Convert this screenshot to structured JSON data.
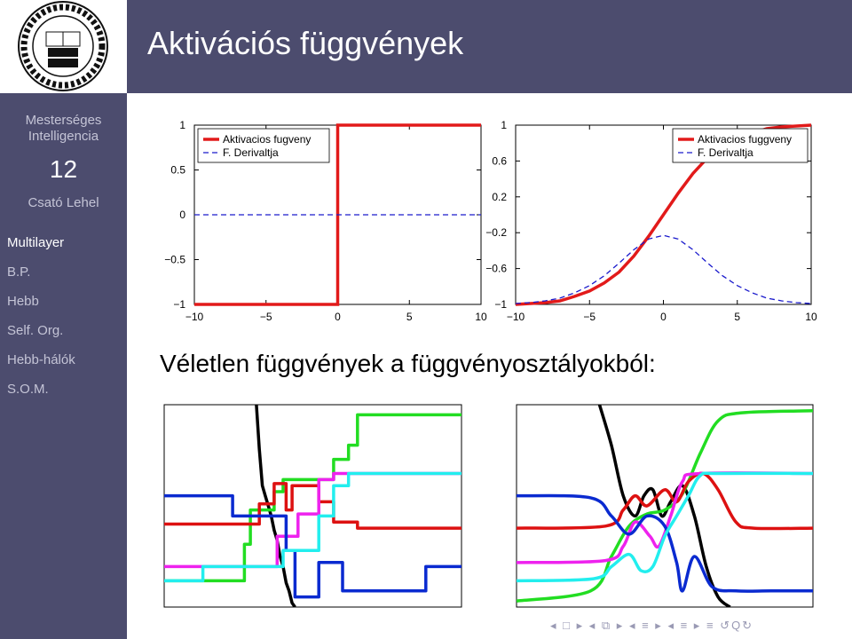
{
  "slide": {
    "title": "Aktivációs függvények",
    "subheading": "Véletlen függvények a függvényosztályokból:"
  },
  "logo": {
    "ring_text": "UNIVERSITAS NAPOCENSIS",
    "center_text": "TRADITIO NOSTRA UNACUM EUROPAE VIRTUTIBUS SPLENDIT",
    "year": "1581",
    "bottom_text": "BABEŞ-BOLYAI ROMANA"
  },
  "sidebar": {
    "course": "Mesterséges Intelligencia",
    "course_line1": "Mesterséges",
    "course_line2": "Intelligencia",
    "lecture_number": "12",
    "author": "Csató Lehel",
    "nav_items": [
      {
        "label": "Multilayer",
        "active": true
      },
      {
        "label": "B.P.",
        "active": false
      },
      {
        "label": "Hebb",
        "active": false
      },
      {
        "label": "Self. Org.",
        "active": false
      },
      {
        "label": "Hebb-hálók",
        "active": false
      },
      {
        "label": "S.O.M.",
        "active": false
      }
    ]
  },
  "colors": {
    "sidebar_bg": "#4c4c6e",
    "activation": "#e21a1a",
    "derivative": "#1a1acc",
    "green": "#22dd22",
    "magenta": "#ee22ee",
    "cyan": "#22eeee",
    "blue": "#0a2ad0",
    "red": "#dd1111",
    "black": "#000000"
  },
  "chart_data": [
    {
      "type": "line",
      "title": "",
      "xlim": [
        -10,
        10
      ],
      "ylim": [
        -1,
        1
      ],
      "xticks": [
        "−10",
        "−5",
        "0",
        "5",
        "10"
      ],
      "yticks": [
        "−1",
        "−0.5",
        "0",
        "0.5",
        "1"
      ],
      "legend": "top-left",
      "series": [
        {
          "name": "Aktivacios fugveny",
          "style": "solid",
          "color": "#e21a1a",
          "x": [
            -10,
            0,
            0,
            10
          ],
          "y": [
            -1,
            -1,
            1,
            1
          ]
        },
        {
          "name": "F. Derivaltja",
          "style": "dashed",
          "color": "#1a1acc",
          "x": [
            -10,
            10
          ],
          "y": [
            0,
            0
          ]
        }
      ]
    },
    {
      "type": "line",
      "title": "",
      "xlim": [
        -10,
        10
      ],
      "ylim": [
        -1,
        1
      ],
      "xticks": [
        "−10",
        "−5",
        "0",
        "5",
        "10"
      ],
      "yticks": [
        "−1",
        "−0.6",
        "−0.2",
        "0.2",
        "0.6",
        "1"
      ],
      "legend": "top-right",
      "series": [
        {
          "name": "Aktivacios fuggveny",
          "style": "solid",
          "color": "#e21a1a",
          "x": [
            -10,
            -9,
            -8,
            -7,
            -6,
            -5,
            -4,
            -3,
            -2,
            -1,
            0,
            1,
            2,
            3,
            4,
            5,
            6,
            7,
            8,
            9,
            10
          ],
          "y": [
            -1.0,
            -0.99,
            -0.98,
            -0.96,
            -0.91,
            -0.85,
            -0.76,
            -0.64,
            -0.46,
            -0.24,
            0,
            0.24,
            0.46,
            0.64,
            0.76,
            0.85,
            0.91,
            0.96,
            0.98,
            0.99,
            1.0
          ]
        },
        {
          "name": "F. Derivaltja",
          "style": "dashed",
          "color": "#1a1acc",
          "x": [
            -10,
            -9,
            -8,
            -7,
            -6,
            -5,
            -4,
            -3,
            -2,
            -1,
            0,
            1,
            2,
            3,
            4,
            5,
            6,
            7,
            8,
            9,
            10
          ],
          "y": [
            -0.99,
            -0.98,
            -0.96,
            -0.93,
            -0.87,
            -0.79,
            -0.68,
            -0.54,
            -0.39,
            -0.27,
            -0.23,
            -0.27,
            -0.39,
            -0.54,
            -0.68,
            -0.79,
            -0.87,
            -0.93,
            -0.96,
            -0.98,
            -0.99
          ]
        }
      ]
    },
    {
      "type": "line",
      "title": "",
      "xlim": [
        0,
        1
      ],
      "ylim": [
        0,
        1
      ],
      "grid": false,
      "series": [
        {
          "color": "#000000",
          "step": true,
          "points": [
            [
              0.31,
              1.0
            ],
            [
              0.32,
              0.78
            ],
            [
              0.33,
              0.6
            ],
            [
              0.34,
              0.55
            ],
            [
              0.35,
              0.5
            ],
            [
              0.36,
              0.45
            ],
            [
              0.37,
              0.38
            ],
            [
              0.38,
              0.33
            ],
            [
              0.39,
              0.25
            ],
            [
              0.4,
              0.2
            ],
            [
              0.41,
              0.12
            ],
            [
              0.42,
              0.08
            ],
            [
              0.43,
              0.02
            ],
            [
              0.44,
              0.0
            ]
          ]
        },
        {
          "color": "#22dd22",
          "step": true,
          "points": [
            [
              0.0,
              0.13
            ],
            [
              0.27,
              0.13
            ],
            [
              0.27,
              0.31
            ],
            [
              0.29,
              0.31
            ],
            [
              0.29,
              0.48
            ],
            [
              0.37,
              0.48
            ],
            [
              0.37,
              0.57
            ],
            [
              0.4,
              0.57
            ],
            [
              0.4,
              0.63
            ],
            [
              0.57,
              0.63
            ],
            [
              0.57,
              0.73
            ],
            [
              0.62,
              0.73
            ],
            [
              0.62,
              0.8
            ],
            [
              0.65,
              0.8
            ],
            [
              0.65,
              0.95
            ],
            [
              1.0,
              0.95
            ]
          ]
        },
        {
          "color": "#dd1111",
          "step": true,
          "points": [
            [
              0.0,
              0.41
            ],
            [
              0.32,
              0.41
            ],
            [
              0.32,
              0.51
            ],
            [
              0.37,
              0.51
            ],
            [
              0.37,
              0.61
            ],
            [
              0.41,
              0.61
            ],
            [
              0.41,
              0.48
            ],
            [
              0.43,
              0.48
            ],
            [
              0.43,
              0.6
            ],
            [
              0.52,
              0.6
            ],
            [
              0.52,
              0.52
            ],
            [
              0.57,
              0.52
            ],
            [
              0.57,
              0.42
            ],
            [
              0.65,
              0.42
            ],
            [
              0.65,
              0.39
            ],
            [
              1.0,
              0.39
            ]
          ]
        },
        {
          "color": "#ee22ee",
          "step": true,
          "points": [
            [
              0.0,
              0.2
            ],
            [
              0.38,
              0.2
            ],
            [
              0.38,
              0.35
            ],
            [
              0.45,
              0.35
            ],
            [
              0.45,
              0.46
            ],
            [
              0.52,
              0.46
            ],
            [
              0.52,
              0.63
            ],
            [
              0.57,
              0.63
            ],
            [
              0.57,
              0.66
            ],
            [
              1.0,
              0.66
            ]
          ]
        },
        {
          "color": "#0a2ad0",
          "step": true,
          "points": [
            [
              0.0,
              0.55
            ],
            [
              0.23,
              0.55
            ],
            [
              0.23,
              0.45
            ],
            [
              0.41,
              0.45
            ],
            [
              0.41,
              0.28
            ],
            [
              0.44,
              0.28
            ],
            [
              0.44,
              0.05
            ],
            [
              0.52,
              0.05
            ],
            [
              0.52,
              0.22
            ],
            [
              0.6,
              0.22
            ],
            [
              0.6,
              0.08
            ],
            [
              0.88,
              0.08
            ],
            [
              0.88,
              0.2
            ],
            [
              1.0,
              0.2
            ]
          ]
        },
        {
          "color": "#22eeee",
          "step": true,
          "points": [
            [
              0.0,
              0.13
            ],
            [
              0.13,
              0.13
            ],
            [
              0.13,
              0.2
            ],
            [
              0.4,
              0.2
            ],
            [
              0.4,
              0.28
            ],
            [
              0.52,
              0.28
            ],
            [
              0.52,
              0.45
            ],
            [
              0.57,
              0.45
            ],
            [
              0.57,
              0.6
            ],
            [
              0.62,
              0.6
            ],
            [
              0.62,
              0.66
            ],
            [
              1.0,
              0.66
            ]
          ]
        }
      ]
    },
    {
      "type": "line",
      "title": "",
      "xlim": [
        0,
        1
      ],
      "ylim": [
        0,
        1
      ],
      "grid": false,
      "series": [
        {
          "color": "#000000",
          "points": [
            [
              0.28,
              1.0
            ],
            [
              0.32,
              0.8
            ],
            [
              0.36,
              0.55
            ],
            [
              0.4,
              0.45
            ],
            [
              0.43,
              0.55
            ],
            [
              0.46,
              0.58
            ],
            [
              0.49,
              0.45
            ],
            [
              0.52,
              0.52
            ],
            [
              0.56,
              0.6
            ],
            [
              0.6,
              0.45
            ],
            [
              0.64,
              0.2
            ],
            [
              0.68,
              0.05
            ],
            [
              0.72,
              0.0
            ]
          ]
        },
        {
          "color": "#22dd22",
          "points": [
            [
              0.0,
              0.03
            ],
            [
              0.25,
              0.08
            ],
            [
              0.32,
              0.25
            ],
            [
              0.38,
              0.4
            ],
            [
              0.44,
              0.46
            ],
            [
              0.5,
              0.48
            ],
            [
              0.56,
              0.56
            ],
            [
              0.62,
              0.76
            ],
            [
              0.68,
              0.92
            ],
            [
              0.76,
              0.96
            ],
            [
              1.0,
              0.97
            ]
          ]
        },
        {
          "color": "#dd1111",
          "points": [
            [
              0.0,
              0.39
            ],
            [
              0.3,
              0.4
            ],
            [
              0.36,
              0.48
            ],
            [
              0.4,
              0.55
            ],
            [
              0.44,
              0.5
            ],
            [
              0.5,
              0.58
            ],
            [
              0.54,
              0.52
            ],
            [
              0.58,
              0.62
            ],
            [
              0.63,
              0.66
            ],
            [
              0.68,
              0.58
            ],
            [
              0.74,
              0.42
            ],
            [
              0.8,
              0.39
            ],
            [
              1.0,
              0.39
            ]
          ]
        },
        {
          "color": "#ee22ee",
          "points": [
            [
              0.0,
              0.22
            ],
            [
              0.3,
              0.23
            ],
            [
              0.36,
              0.3
            ],
            [
              0.4,
              0.42
            ],
            [
              0.45,
              0.35
            ],
            [
              0.48,
              0.3
            ],
            [
              0.52,
              0.45
            ],
            [
              0.56,
              0.62
            ],
            [
              0.62,
              0.66
            ],
            [
              1.0,
              0.66
            ]
          ]
        },
        {
          "color": "#0a2ad0",
          "points": [
            [
              0.0,
              0.55
            ],
            [
              0.25,
              0.54
            ],
            [
              0.32,
              0.45
            ],
            [
              0.38,
              0.36
            ],
            [
              0.44,
              0.45
            ],
            [
              0.5,
              0.4
            ],
            [
              0.54,
              0.22
            ],
            [
              0.56,
              0.08
            ],
            [
              0.6,
              0.25
            ],
            [
              0.66,
              0.1
            ],
            [
              0.74,
              0.08
            ],
            [
              0.86,
              0.08
            ],
            [
              1.0,
              0.08
            ]
          ]
        },
        {
          "color": "#22eeee",
          "points": [
            [
              0.0,
              0.13
            ],
            [
              0.26,
              0.14
            ],
            [
              0.32,
              0.2
            ],
            [
              0.38,
              0.26
            ],
            [
              0.42,
              0.18
            ],
            [
              0.46,
              0.2
            ],
            [
              0.5,
              0.35
            ],
            [
              0.54,
              0.45
            ],
            [
              0.58,
              0.55
            ],
            [
              0.62,
              0.65
            ],
            [
              0.68,
              0.66
            ],
            [
              1.0,
              0.66
            ]
          ]
        }
      ]
    }
  ]
}
